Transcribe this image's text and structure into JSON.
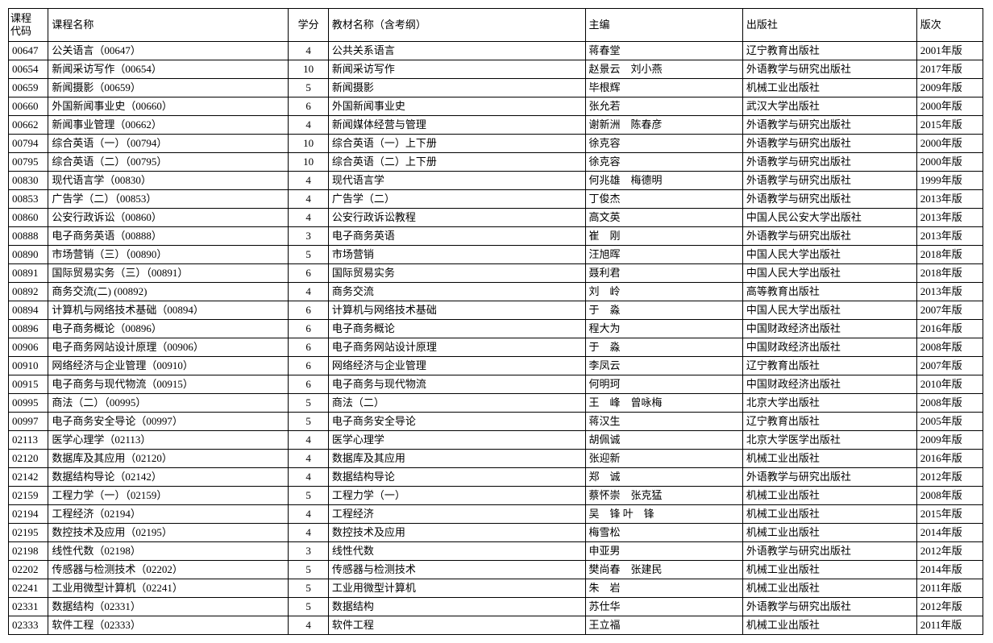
{
  "table": {
    "headers": {
      "code": "课程\n代码",
      "name": "课程名称",
      "credit": "学分",
      "textbook": "教材名称（含考纲）",
      "editor": "主编",
      "publisher": "出版社",
      "edition": "版次"
    },
    "rows": [
      {
        "code": "00647",
        "name": "公关语言（00647）",
        "credit": "4",
        "textbook": "公共关系语言",
        "editor": "蒋春堂",
        "publisher": "辽宁教育出版社",
        "edition": "2001年版"
      },
      {
        "code": "00654",
        "name": "新闻采访写作（00654）",
        "credit": "10",
        "textbook": "新闻采访写作",
        "editor": "赵景云　刘小燕",
        "publisher": "外语教学与研究出版社",
        "edition": "2017年版"
      },
      {
        "code": "00659",
        "name": "新闻摄影（00659）",
        "credit": "5",
        "textbook": "新闻摄影",
        "editor": "毕根辉",
        "publisher": "机械工业出版社",
        "edition": "2009年版"
      },
      {
        "code": "00660",
        "name": "外国新闻事业史（00660）",
        "credit": "6",
        "textbook": "外国新闻事业史",
        "editor": "张允若",
        "publisher": "武汉大学出版社",
        "edition": "2000年版"
      },
      {
        "code": "00662",
        "name": "新闻事业管理（00662）",
        "credit": "4",
        "textbook": "新闻媒体经营与管理",
        "editor": "谢新洲　陈春彦",
        "publisher": "外语教学与研究出版社",
        "edition": "2015年版"
      },
      {
        "code": "00794",
        "name": "综合英语（一）（00794）",
        "credit": "10",
        "textbook": "综合英语（一）上下册",
        "editor": "徐克容",
        "publisher": "外语教学与研究出版社",
        "edition": "2000年版"
      },
      {
        "code": "00795",
        "name": "综合英语（二）（00795）",
        "credit": "10",
        "textbook": "综合英语（二）上下册",
        "editor": "徐克容",
        "publisher": "外语教学与研究出版社",
        "edition": "2000年版"
      },
      {
        "code": "00830",
        "name": "现代语言学（00830）",
        "credit": "4",
        "textbook": "现代语言学",
        "editor": "何兆雄　梅德明",
        "publisher": "外语教学与研究出版社",
        "edition": "1999年版"
      },
      {
        "code": "00853",
        "name": "广告学（二）（00853）",
        "credit": "4",
        "textbook": "广告学（二）",
        "editor": "丁俊杰",
        "publisher": "外语教学与研究出版社",
        "edition": "2013年版"
      },
      {
        "code": "00860",
        "name": "公安行政诉讼（00860）",
        "credit": "4",
        "textbook": "公安行政诉讼教程",
        "editor": "高文英",
        "publisher": "中国人民公安大学出版社",
        "edition": "2013年版"
      },
      {
        "code": "00888",
        "name": "电子商务英语（00888）",
        "credit": "3",
        "textbook": "电子商务英语",
        "editor": "崔　刚",
        "publisher": "外语教学与研究出版社",
        "edition": "2013年版"
      },
      {
        "code": "00890",
        "name": "市场营销（三）（00890）",
        "credit": "5",
        "textbook": "市场营销",
        "editor": "汪旭晖",
        "publisher": "中国人民大学出版社",
        "edition": "2018年版"
      },
      {
        "code": "00891",
        "name": "国际贸易实务（三）（00891）",
        "credit": "6",
        "textbook": "国际贸易实务",
        "editor": "聂利君",
        "publisher": "中国人民大学出版社",
        "edition": "2018年版"
      },
      {
        "code": "00892",
        "name": "商务交流(二) (00892)",
        "credit": "4",
        "textbook": "商务交流",
        "editor": "刘　岭",
        "publisher": "高等教育出版社",
        "edition": "2013年版"
      },
      {
        "code": "00894",
        "name": "计算机与网络技术基础（00894）",
        "credit": "6",
        "textbook": "计算机与网络技术基础",
        "editor": "于　淼",
        "publisher": "中国人民大学出版社",
        "edition": "2007年版"
      },
      {
        "code": "00896",
        "name": "电子商务概论（00896）",
        "credit": "6",
        "textbook": "电子商务概论",
        "editor": "程大为",
        "publisher": "中国财政经济出版社",
        "edition": "2016年版"
      },
      {
        "code": "00906",
        "name": "电子商务网站设计原理（00906）",
        "credit": "6",
        "textbook": "电子商务网站设计原理",
        "editor": "于　淼",
        "publisher": "中国财政经济出版社",
        "edition": "2008年版"
      },
      {
        "code": "00910",
        "name": "网络经济与企业管理（00910）",
        "credit": "6",
        "textbook": "网络经济与企业管理",
        "editor": "李凤云",
        "publisher": "辽宁教育出版社",
        "edition": "2007年版"
      },
      {
        "code": "00915",
        "name": "电子商务与现代物流（00915）",
        "credit": "6",
        "textbook": "电子商务与现代物流",
        "editor": "何明珂",
        "publisher": "中国财政经济出版社",
        "edition": "2010年版"
      },
      {
        "code": "00995",
        "name": "商法（二）（00995）",
        "credit": "5",
        "textbook": "商法（二）",
        "editor": "王　峰　曾咏梅",
        "publisher": "北京大学出版社",
        "edition": "2008年版"
      },
      {
        "code": "00997",
        "name": "电子商务安全导论（00997）",
        "credit": "5",
        "textbook": "电子商务安全导论",
        "editor": "蒋汉生",
        "publisher": "辽宁教育出版社",
        "edition": "2005年版"
      },
      {
        "code": "02113",
        "name": "医学心理学（02113）",
        "credit": "4",
        "textbook": "医学心理学",
        "editor": "胡佩诚",
        "publisher": "北京大学医学出版社",
        "edition": "2009年版"
      },
      {
        "code": "02120",
        "name": "数据库及其应用（02120）",
        "credit": "4",
        "textbook": "数据库及其应用",
        "editor": "张迎新",
        "publisher": "机械工业出版社",
        "edition": "2016年版"
      },
      {
        "code": "02142",
        "name": "数据结构导论（02142）",
        "credit": "4",
        "textbook": "数据结构导论",
        "editor": "郑　诚",
        "publisher": "外语教学与研究出版社",
        "edition": "2012年版"
      },
      {
        "code": "02159",
        "name": "工程力学（一）（02159）",
        "credit": "5",
        "textbook": "工程力学（一）",
        "editor": "蔡怀崇　张克猛",
        "publisher": "机械工业出版社",
        "edition": "2008年版"
      },
      {
        "code": "02194",
        "name": "工程经济（02194）",
        "credit": "4",
        "textbook": "工程经济",
        "editor": "吴　锋 叶　锋",
        "publisher": "机械工业出版社",
        "edition": "2015年版"
      },
      {
        "code": "02195",
        "name": "数控技术及应用（02195）",
        "credit": "4",
        "textbook": "数控技术及应用",
        "editor": "梅雪松",
        "publisher": "机械工业出版社",
        "edition": "2014年版"
      },
      {
        "code": "02198",
        "name": "线性代数（02198）",
        "credit": "3",
        "textbook": "线性代数",
        "editor": "申亚男",
        "publisher": "外语教学与研究出版社",
        "edition": "2012年版"
      },
      {
        "code": "02202",
        "name": "传感器与检测技术（02202）",
        "credit": "5",
        "textbook": "传感器与检测技术",
        "editor": "樊尚春　张建民",
        "publisher": "机械工业出版社",
        "edition": "2014年版"
      },
      {
        "code": "02241",
        "name": "工业用微型计算机（02241）",
        "credit": "5",
        "textbook": "工业用微型计算机",
        "editor": "朱　岩",
        "publisher": "机械工业出版社",
        "edition": "2011年版"
      },
      {
        "code": "02331",
        "name": "数据结构（02331）",
        "credit": "5",
        "textbook": "数据结构",
        "editor": "苏仕华",
        "publisher": "外语教学与研究出版社",
        "edition": "2012年版"
      },
      {
        "code": "02333",
        "name": "软件工程（02333）",
        "credit": "4",
        "textbook": "软件工程",
        "editor": "王立福",
        "publisher": "机械工业出版社",
        "edition": "2011年版"
      }
    ]
  }
}
